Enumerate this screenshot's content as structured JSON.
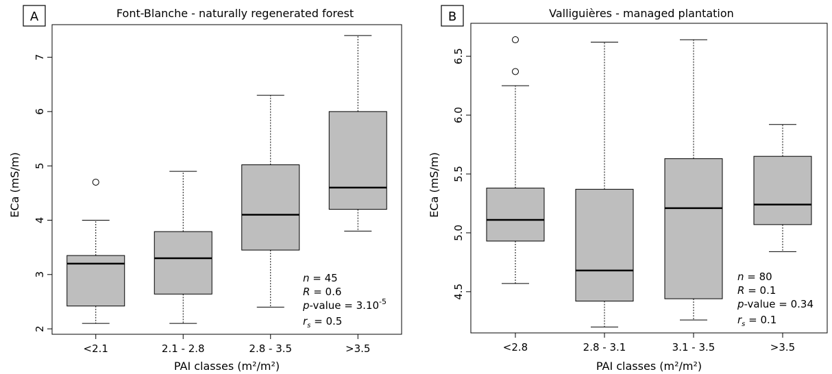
{
  "figure": {
    "box_fill": "#bebebe",
    "outlier_note": "open circles mark outliers"
  },
  "chart_data": [
    {
      "type": "boxplot",
      "panel_label": "A",
      "title": "Font-Blanche - naturally regenerated forest",
      "xlabel": "PAI classes (m²/m²)",
      "ylabel": "ECa (mS/m)",
      "ylim": [
        1.9,
        7.6
      ],
      "yticks": [
        "2",
        "3",
        "4",
        "5",
        "6",
        "7"
      ],
      "ytick_values": [
        2,
        3,
        4,
        5,
        6,
        7
      ],
      "grid": false,
      "categories": [
        "<2.1",
        "2.1 - 2.8",
        "2.8 - 3.5",
        ">3.5"
      ],
      "boxes": [
        {
          "min": 2.1,
          "q1": 2.42,
          "median": 3.2,
          "q3": 3.35,
          "max": 4.0,
          "outliers": [
            4.7
          ]
        },
        {
          "min": 2.1,
          "q1": 2.64,
          "median": 3.3,
          "q3": 3.79,
          "max": 4.9,
          "outliers": []
        },
        {
          "min": 2.4,
          "q1": 3.45,
          "median": 4.1,
          "q3": 5.02,
          "max": 6.3,
          "outliers": []
        },
        {
          "min": 3.8,
          "q1": 4.2,
          "median": 4.6,
          "q3": 6.0,
          "max": 7.4,
          "outliers": []
        }
      ],
      "stats": {
        "n": "45",
        "R": "0.6",
        "p_value": "3.10",
        "p_exp": "-5",
        "rs": "0.5"
      }
    },
    {
      "type": "boxplot",
      "panel_label": "B",
      "title": "Valliguières - managed plantation",
      "xlabel": "PAI classes (m²/m²)",
      "ylabel": "ECa (mS/m)",
      "ylim": [
        4.15,
        6.78
      ],
      "yticks": [
        "4.5",
        "5.0",
        "5.5",
        "6.0",
        "6.5"
      ],
      "ytick_values": [
        4.5,
        5.0,
        5.5,
        6.0,
        6.5
      ],
      "grid": false,
      "categories": [
        "<2.8",
        "2.8 - 3.1",
        "3.1 - 3.5",
        ">3.5"
      ],
      "boxes": [
        {
          "min": 4.57,
          "q1": 4.93,
          "median": 5.11,
          "q3": 5.38,
          "max": 6.25,
          "outliers": [
            6.37,
            6.64
          ]
        },
        {
          "min": 4.2,
          "q1": 4.42,
          "median": 4.68,
          "q3": 5.37,
          "max": 6.62,
          "outliers": []
        },
        {
          "min": 4.26,
          "q1": 4.44,
          "median": 5.21,
          "q3": 5.63,
          "max": 6.64,
          "outliers": []
        },
        {
          "min": 4.84,
          "q1": 5.07,
          "median": 5.24,
          "q3": 5.65,
          "max": 5.92,
          "outliers": []
        }
      ],
      "stats": {
        "n": "80",
        "R": "0.1",
        "p_value": "0.34",
        "p_exp": "",
        "rs": "0.1"
      }
    }
  ]
}
